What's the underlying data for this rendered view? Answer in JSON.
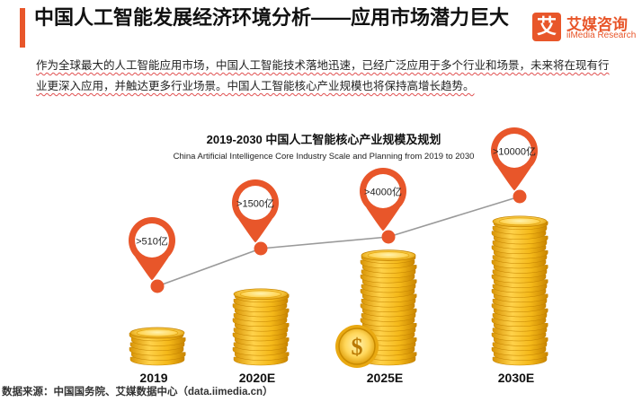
{
  "header": {
    "title": "中国人工智能发展经济环境分析——应用市场潜力巨大",
    "logo_mark": "艾",
    "logo_cn": "艾媒咨询",
    "logo_en": "iiMedia Research"
  },
  "description": "作为全球最大的人工智能应用市场，中国人工智能技术落地迅速，已经广泛应用于多个行业和场景，未来将在现有行业更深入应用，并触达更多行业场景。中国人工智能核心产业规模也将保持高增长趋势。",
  "chart_data": {
    "type": "bar",
    "title": "2019-2030 中国人工智能核心产业规模及规划",
    "subtitle": "China Artificial Intelligence Core Industry Scale and Planning from 2019 to 2030",
    "categories": [
      "2019",
      "2020E",
      "2025E",
      "2030E"
    ],
    "values": [
      510,
      1500,
      4000,
      10000
    ],
    "data_labels": [
      ">510亿",
      ">1500亿",
      ">4000亿",
      ">10000亿"
    ],
    "unit": "亿",
    "style": "coin-stacks",
    "colors": {
      "accent": "#e8562a",
      "coin": "#f0b51e",
      "line": "#9a9a9a"
    }
  },
  "source": "数据来源：中国国务院、艾媒数据中心（data.iimedia.cn）"
}
